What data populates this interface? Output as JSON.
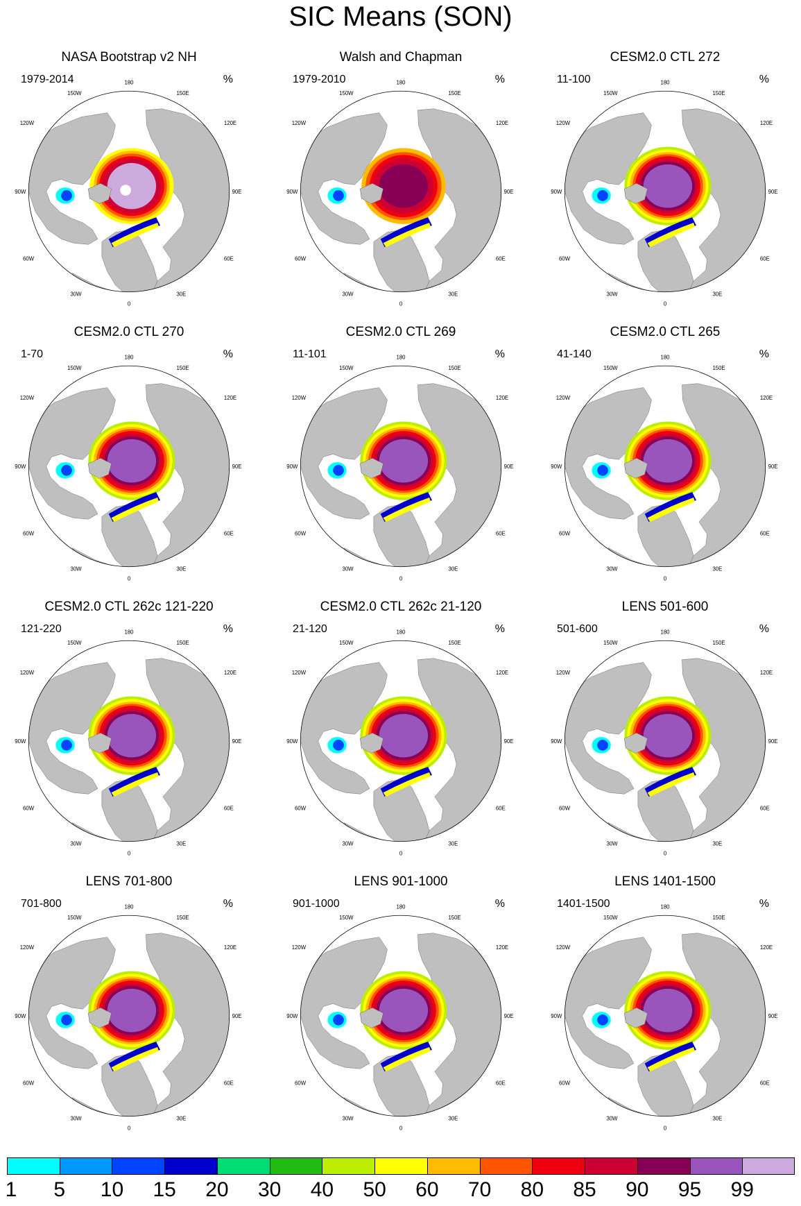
{
  "title": "SIC Means (SON)",
  "unit": "%",
  "colors": {
    "land": "#bfbfbf",
    "ocean": "#ffffff",
    "levels": [
      "#00ffff",
      "#0099ff",
      "#0044ff",
      "#0000cc",
      "#00dd77",
      "#22bb11",
      "#bbee00",
      "#ffff00",
      "#ffbb00",
      "#ff5500",
      "#ee0011",
      "#cc0033",
      "#880055",
      "#9955bb",
      "#ccaadd"
    ]
  },
  "colorbar": {
    "labels": [
      "1",
      "5",
      "10",
      "15",
      "20",
      "30",
      "40",
      "50",
      "60",
      "70",
      "80",
      "85",
      "90",
      "95",
      "99"
    ]
  },
  "map_labels": [
    "180",
    "150W",
    "150E",
    "120W",
    "120E",
    "90W",
    "90E",
    "60W",
    "60E",
    "30W",
    "30E",
    "0"
  ],
  "panels": [
    {
      "title": "NASA Bootstrap v2 NH",
      "years": "1979-2014",
      "variant": "obs"
    },
    {
      "title": "Walsh and Chapman",
      "years": "1979-2010",
      "variant": "walsh"
    },
    {
      "title": "CESM2.0 CTL 272",
      "years": "11-100",
      "variant": "model"
    },
    {
      "title": "CESM2.0 CTL 270",
      "years": "1-70",
      "variant": "model"
    },
    {
      "title": "CESM2.0 CTL 269",
      "years": "11-101",
      "variant": "model"
    },
    {
      "title": "CESM2.0 CTL 265",
      "years": "41-140",
      "variant": "model"
    },
    {
      "title": "CESM2.0 CTL 262c 121-220",
      "years": "121-220",
      "variant": "model"
    },
    {
      "title": "CESM2.0 CTL 262c 21-120",
      "years": "21-120",
      "variant": "model"
    },
    {
      "title": "LENS 501-600",
      "years": "501-600",
      "variant": "lens"
    },
    {
      "title": "LENS 701-800",
      "years": "701-800",
      "variant": "lens"
    },
    {
      "title": "LENS 901-1000",
      "years": "901-1000",
      "variant": "lens"
    },
    {
      "title": "LENS 1401-1500",
      "years": "1401-1500",
      "variant": "lens"
    }
  ]
}
